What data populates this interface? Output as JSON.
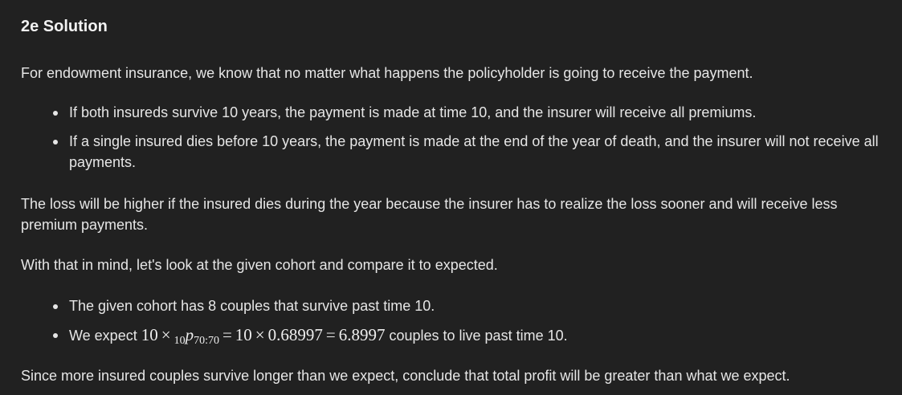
{
  "heading": "2e Solution",
  "intro": "For endowment insurance, we know that no matter what happens the policyholder is going to receive the payment.",
  "bullets1": [
    "If both insureds survive 10 years, the payment is made at time 10, and the insurer will receive all premiums.",
    "If a single insured dies before 10 years, the payment is made at the end of the year of death, and the insurer will not receive all payments."
  ],
  "loss_paragraph": "The loss will be higher if the insured dies during the year because the insurer has to realize the loss sooner and will receive less premium payments.",
  "cohort_intro": "With that in mind, let's look at the given cohort and compare it to expected.",
  "bullets2": {
    "item1": "The given cohort has 8 couples that survive past time 10.",
    "item2_prefix": "We expect ",
    "math": {
      "a": "10",
      "times": "×",
      "pre_sub": "10",
      "p": "p",
      "post_sub": "70:70",
      "eq": "=",
      "b": "10",
      "c": "0.68997",
      "result": "6.8997"
    },
    "item2_suffix": " couples to live past time 10."
  },
  "conclusion": "Since more insured couples survive longer than we expect, conclude that total profit will be greater than what we expect."
}
